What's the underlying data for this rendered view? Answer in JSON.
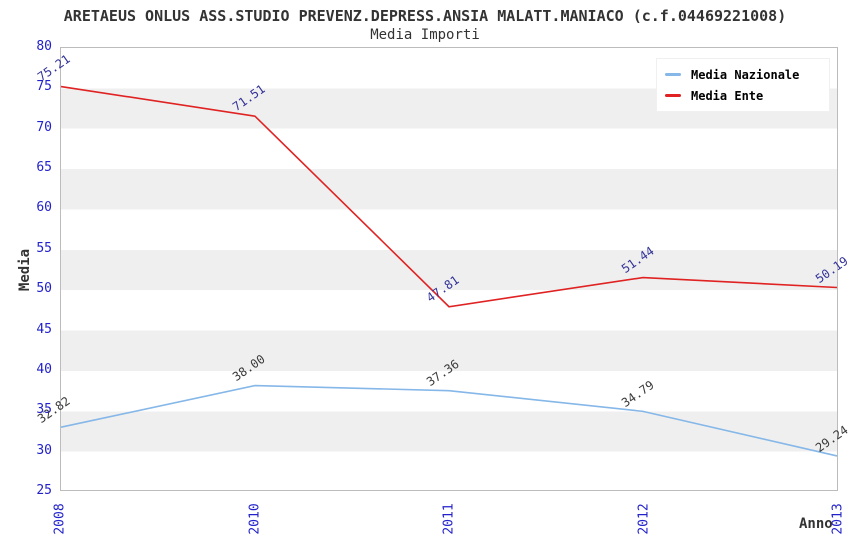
{
  "header": {
    "title": "ARETAEUS ONLUS ASS.STUDIO PREVENZ.DEPRESS.ANSIA MALATT.MANIACO (c.f.04469221008)",
    "subtitle": "Media Importi"
  },
  "chart_data": {
    "type": "line",
    "title": "Media Importi",
    "categories": [
      "2008",
      "2010",
      "2011",
      "2012",
      "2013"
    ],
    "series": [
      {
        "name": "Media Nazionale",
        "color": "#85b7e8",
        "label_color": "#3a3a3a",
        "values": [
          32.82,
          38.0,
          37.36,
          34.79,
          29.24
        ],
        "labels": [
          "32.82",
          "38.00",
          "37.36",
          "34.79",
          "29.24"
        ]
      },
      {
        "name": "Media Ente",
        "color": "#e02222",
        "label_color": "#333399",
        "values": [
          75.21,
          71.51,
          47.81,
          51.44,
          50.19
        ],
        "labels": [
          "75.21",
          "71.51",
          "47.81",
          "51.44",
          "50.19"
        ]
      }
    ],
    "xlabel": "Anno",
    "ylabel": "Media",
    "ylim": [
      25,
      80
    ],
    "yticks": [
      80,
      75,
      70,
      65,
      60,
      55,
      50,
      45,
      40,
      35,
      30,
      25
    ],
    "ytick_step": 5,
    "legend_position": "top-right",
    "grid": "alternating-horizontal-bands",
    "colors": {
      "tick_label": "#2222cc",
      "band_gray": "#efefef",
      "band_white": "#ffffff",
      "plot_border": "#bcbcbc",
      "title_text": "#333333"
    }
  }
}
